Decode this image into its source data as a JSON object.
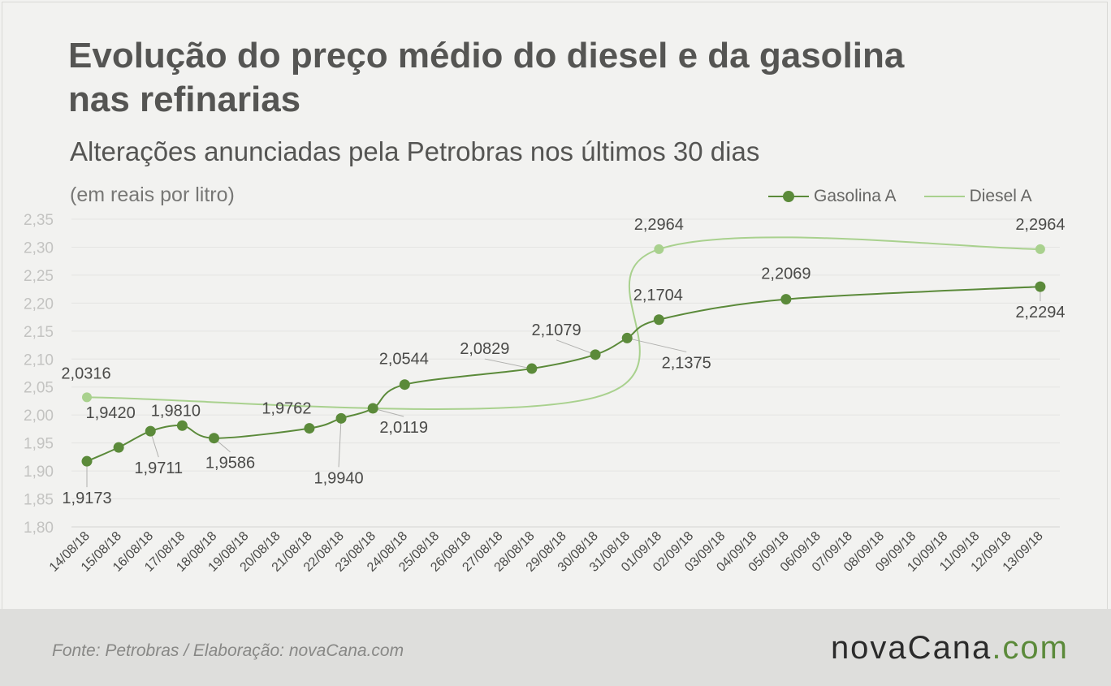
{
  "title": "Evolução do preço médio do diesel e da gasolina nas refinarias",
  "subtitle": "Alterações anunciadas pela Petrobras nos últimos 30 dias",
  "unit_label": "(em reais por litro)",
  "footer": {
    "source": "Fonte:  Petrobras  / Elaboração:  novaCana.com",
    "logo_main": "novaCana",
    "logo_suffix": ".com"
  },
  "colors": {
    "gasolina": "#5b8a3a",
    "diesel": "#a9d18e",
    "grid": "#e4e4e2",
    "axis_text": "#c3c3c1",
    "label_text": "#4a4a48"
  },
  "chart_data": {
    "type": "line",
    "title": "Evolução do preço médio do diesel e da gasolina nas refinarias",
    "subtitle": "Alterações anunciadas pela Petrobras nos últimos 30 dias",
    "ylabel": "(em reais por litro)",
    "xlabel": "",
    "ylim": [
      1.8,
      2.35
    ],
    "yticks": [
      "1,80",
      "1,85",
      "1,90",
      "1,95",
      "2,00",
      "2,05",
      "2,10",
      "2,15",
      "2,20",
      "2,25",
      "2,30",
      "2,35"
    ],
    "grid": true,
    "legend": "top-right",
    "categories": [
      "14/08/18",
      "15/08/18",
      "16/08/18",
      "17/08/18",
      "18/08/18",
      "19/08/18",
      "20/08/18",
      "21/08/18",
      "22/08/18",
      "23/08/18",
      "24/08/18",
      "25/08/18",
      "26/08/18",
      "27/08/18",
      "28/08/18",
      "29/08/18",
      "30/08/18",
      "31/08/18",
      "01/09/18",
      "02/09/18",
      "03/09/18",
      "04/09/18",
      "05/09/18",
      "06/09/18",
      "07/09/18",
      "08/09/18",
      "09/09/18",
      "10/09/18",
      "11/09/18",
      "12/09/18",
      "13/09/18"
    ],
    "series": [
      {
        "name": "Gasolina A",
        "points": [
          {
            "x": "14/08/18",
            "y": 1.9173,
            "label": "1,9173"
          },
          {
            "x": "15/08/18",
            "y": 1.942,
            "label": "1,9420"
          },
          {
            "x": "16/08/18",
            "y": 1.9711,
            "label": "1,9711"
          },
          {
            "x": "17/08/18",
            "y": 1.981,
            "label": "1,9810"
          },
          {
            "x": "18/08/18",
            "y": 1.9586,
            "label": "1,9586"
          },
          {
            "x": "21/08/18",
            "y": 1.9762,
            "label": "1,9762"
          },
          {
            "x": "22/08/18",
            "y": 1.994,
            "label": "1,9940"
          },
          {
            "x": "23/08/18",
            "y": 2.0119,
            "label": "2,0119"
          },
          {
            "x": "24/08/18",
            "y": 2.0544,
            "label": "2,0544"
          },
          {
            "x": "28/08/18",
            "y": 2.0829,
            "label": "2,0829"
          },
          {
            "x": "30/08/18",
            "y": 2.1079,
            "label": "2,1079"
          },
          {
            "x": "31/08/18",
            "y": 2.1375,
            "label": "2,1375"
          },
          {
            "x": "01/09/18",
            "y": 2.1704,
            "label": "2,1704"
          },
          {
            "x": "05/09/18",
            "y": 2.2069,
            "label": "2,2069"
          },
          {
            "x": "13/09/18",
            "y": 2.2294,
            "label": "2,2294"
          }
        ]
      },
      {
        "name": "Diesel A",
        "points": [
          {
            "x": "14/08/18",
            "y": 2.0316,
            "label": "2,0316"
          },
          {
            "x": "30/08/18",
            "y": 2.0316,
            "label": ""
          },
          {
            "x": "01/09/18",
            "y": 2.2964,
            "label": "2,2964"
          },
          {
            "x": "13/09/18",
            "y": 2.2964,
            "label": "2,2964"
          }
        ]
      }
    ]
  }
}
